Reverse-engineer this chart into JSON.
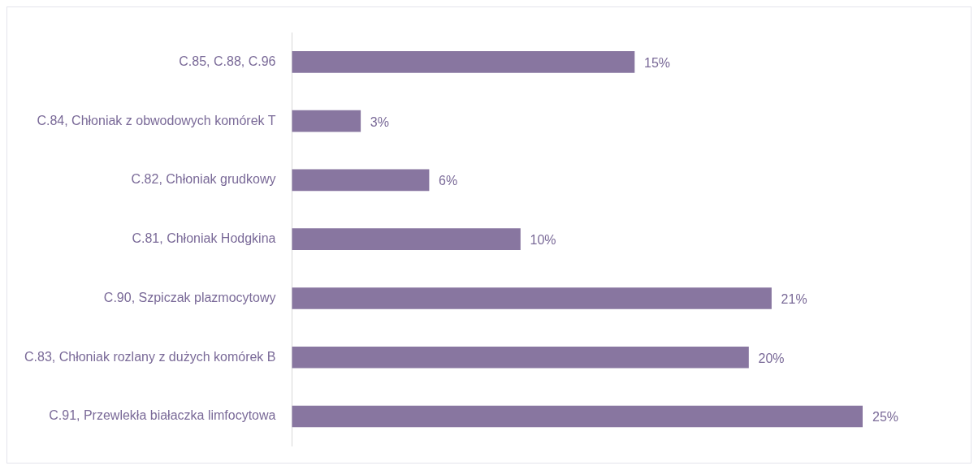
{
  "chart_data": {
    "type": "bar",
    "orientation": "horizontal",
    "categories": [
      "C.85, C.88, C.96",
      "C.84, Chłoniak z obwodowych komórek T",
      "C.82, Chłoniak grudkowy",
      "C.81, Chłoniak Hodgkina",
      "C.90, Szpiczak plazmocytowy",
      "C.83, Chłoniak rozlany z dużych komórek B",
      "C.91, Przewlekła białaczka limfocytowa"
    ],
    "values": [
      15,
      3,
      6,
      10,
      21,
      20,
      25
    ],
    "value_labels": [
      "15%",
      "3%",
      "6%",
      "10%",
      "21%",
      "20%",
      "25%"
    ],
    "color": "#8876a0"
  }
}
